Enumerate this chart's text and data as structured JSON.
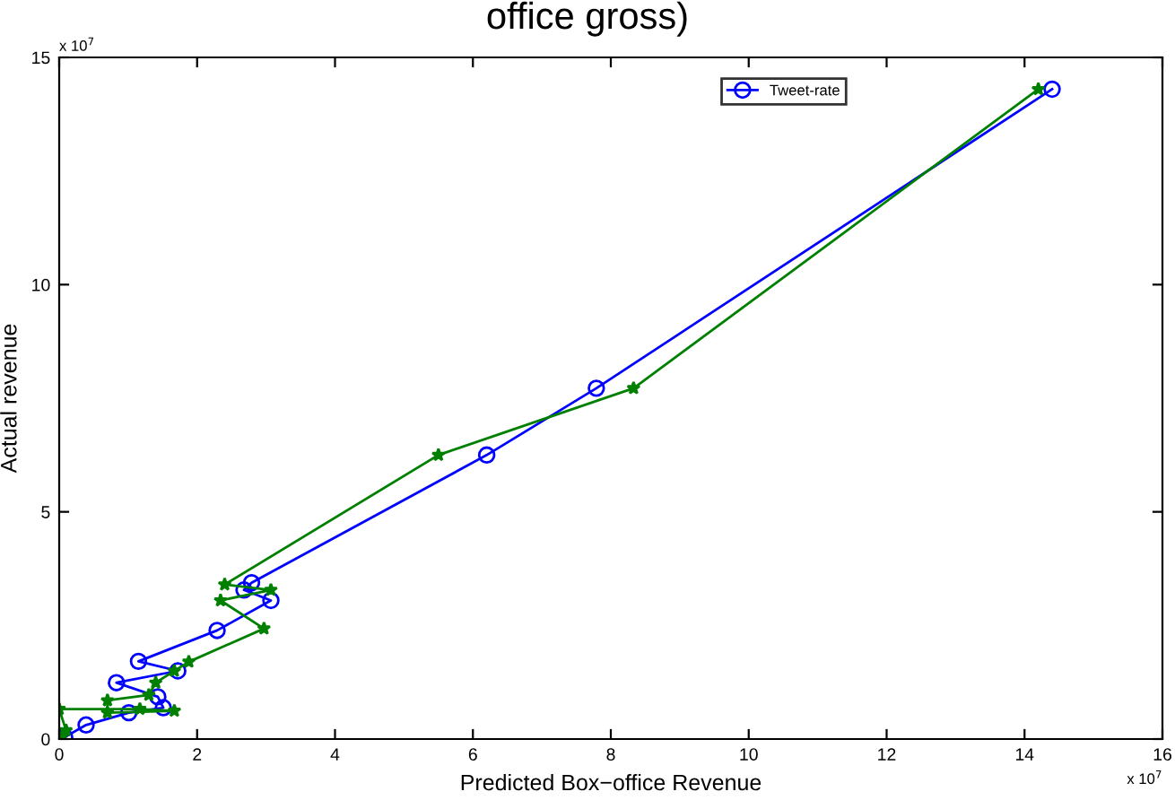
{
  "chart_data": {
    "type": "line",
    "title": "office gross)",
    "xlabel": "Predicted Box−office Revenue",
    "ylabel": "Actual revenue",
    "annotations": [
      "x 10$^{7}$",
      "x 10$^{7}$"
    ],
    "xlim": [
      0,
      16
    ],
    "xticks": [
      0,
      2,
      4,
      6,
      8,
      10,
      12,
      14,
      16
    ],
    "ylim": [
      0,
      15
    ],
    "yticks": [
      0,
      5,
      10,
      15
    ],
    "grid": false,
    "legend": "top right",
    "series": [
      {
        "name": "Tweet-rate",
        "color": "#0000ff",
        "marker": "circle",
        "x": [
          0.08,
          0.39,
          1.01,
          1.51,
          1.43,
          0.83,
          1.72,
          1.15,
          2.29,
          3.07,
          2.68,
          2.79,
          6.2,
          7.79,
          14.4
        ],
        "values": [
          0.04,
          0.31,
          0.58,
          0.69,
          0.93,
          1.24,
          1.5,
          1.71,
          2.39,
          3.05,
          3.28,
          3.44,
          6.25,
          7.72,
          14.3
        ]
      },
      {
        "color": "#008000",
        "marker": "star",
        "x": [
          0.05,
          0.1,
          0.0,
          1.17,
          1.67,
          0.7,
          0.7,
          1.3,
          1.4,
          1.67,
          1.88,
          2.97,
          2.34,
          3.07,
          2.4,
          5.5,
          8.33,
          14.2
        ],
        "values": [
          0.08,
          0.19,
          0.66,
          0.66,
          0.62,
          0.58,
          0.85,
          0.97,
          1.24,
          1.5,
          1.7,
          2.43,
          3.05,
          3.28,
          3.4,
          6.25,
          7.72,
          14.3
        ]
      }
    ]
  }
}
